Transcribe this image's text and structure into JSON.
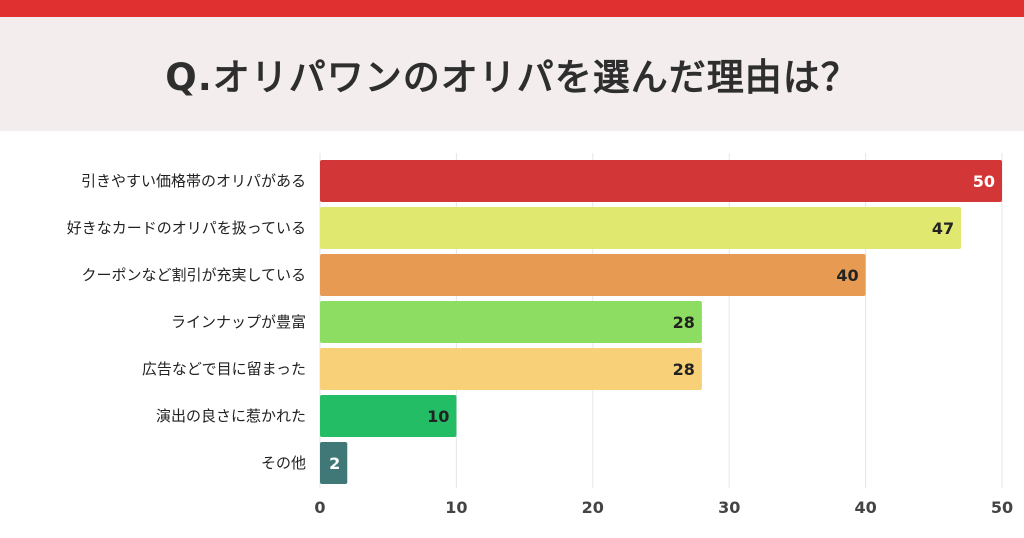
{
  "title": "Q.オリパワンのオリパを選んだ理由は？",
  "chart_data": {
    "type": "bar",
    "orientation": "horizontal",
    "categories": [
      "引きやすい価格帯のオリパがある",
      "好きなカードのオリパを扱っている",
      "クーポンなど割引が充実している",
      "ラインナップが豊富",
      "広告などで目に留まった",
      "演出の良さに惹かれた",
      "その他"
    ],
    "values": [
      50,
      47,
      40,
      28,
      28,
      10,
      2
    ],
    "value_labels": [
      "50",
      "47",
      "40",
      "28",
      "28",
      "10",
      "2"
    ],
    "colors": [
      "#d23636",
      "#e1e86f",
      "#e79b52",
      "#8edd63",
      "#f7d078",
      "#22bd64",
      "#3f7876"
    ],
    "value_label_colors": [
      "#ffffff",
      "#222222",
      "#222222",
      "#222222",
      "#222222",
      "#222222",
      "#ffffff"
    ],
    "xlim": [
      0,
      50
    ],
    "xticks": [
      0,
      10,
      20,
      30,
      40,
      50
    ],
    "tick_labels": [
      "0",
      "10",
      "20",
      "30",
      "40",
      "50"
    ],
    "grid": true
  }
}
